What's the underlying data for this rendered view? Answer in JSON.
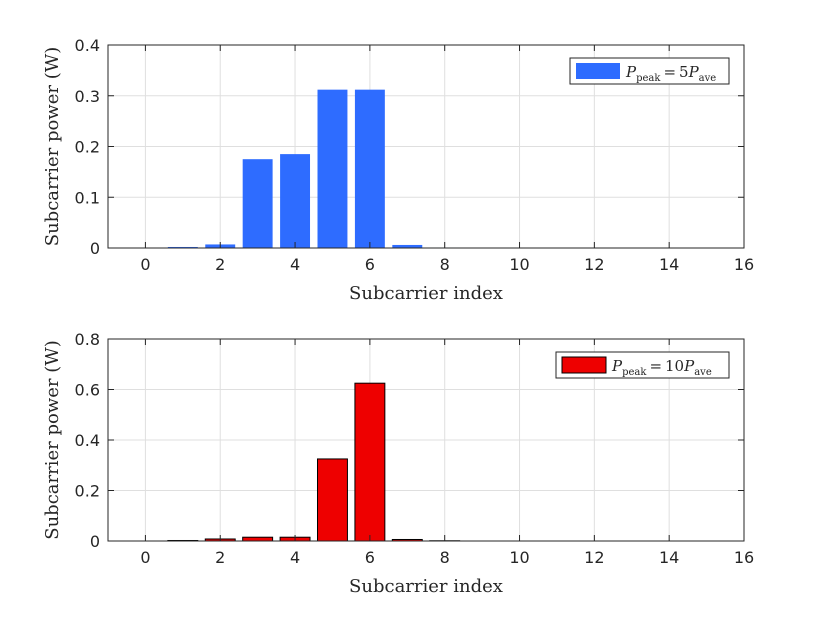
{
  "chart_data": [
    {
      "type": "bar",
      "x": [
        0,
        1,
        2,
        3,
        4,
        5,
        6,
        7,
        8,
        9,
        10,
        11,
        12,
        13,
        14,
        15
      ],
      "values": [
        0.0,
        0.002,
        0.007,
        0.175,
        0.185,
        0.312,
        0.312,
        0.006,
        0.001,
        0.0,
        0.0,
        0.0,
        0.0,
        0.0,
        0.0,
        0.0
      ],
      "xlim": [
        -1,
        16
      ],
      "ylim": [
        0,
        0.4
      ],
      "xticks": [
        "0",
        "2",
        "4",
        "6",
        "8",
        "10",
        "12",
        "14",
        "16"
      ],
      "yticks": [
        "0",
        "0.1",
        "0.2",
        "0.3",
        "0.4"
      ],
      "xlabel": "Subcarrier index",
      "ylabel": "Subcarrier power  (W)",
      "legend": {
        "symbol": "P",
        "sub": "peak",
        "equals": "=",
        "coef": "5",
        "rhs_symbol": "P",
        "rhs_sub": "ave",
        "position": "top-right"
      },
      "bar_color": "#2e6cff",
      "grid": true
    },
    {
      "type": "bar",
      "x": [
        0,
        1,
        2,
        3,
        4,
        5,
        6,
        7,
        8,
        9,
        10,
        11,
        12,
        13,
        14,
        15
      ],
      "values": [
        0.0,
        0.002,
        0.008,
        0.015,
        0.015,
        0.325,
        0.625,
        0.006,
        0.001,
        0.0,
        0.0,
        0.0,
        0.0,
        0.0,
        0.0,
        0.0
      ],
      "xlim": [
        -1,
        16
      ],
      "ylim": [
        0,
        0.8
      ],
      "xticks": [
        "0",
        "2",
        "4",
        "6",
        "8",
        "10",
        "12",
        "14",
        "16"
      ],
      "yticks": [
        "0",
        "0.2",
        "0.4",
        "0.6",
        "0.8"
      ],
      "xlabel": "Subcarrier index",
      "ylabel": "Subcarrier power  (W)",
      "legend": {
        "symbol": "P",
        "sub": "peak",
        "equals": "=",
        "coef": "10",
        "rhs_symbol": "P",
        "rhs_sub": "ave",
        "position": "top-right"
      },
      "bar_color": "#ee0000",
      "grid": true
    }
  ]
}
